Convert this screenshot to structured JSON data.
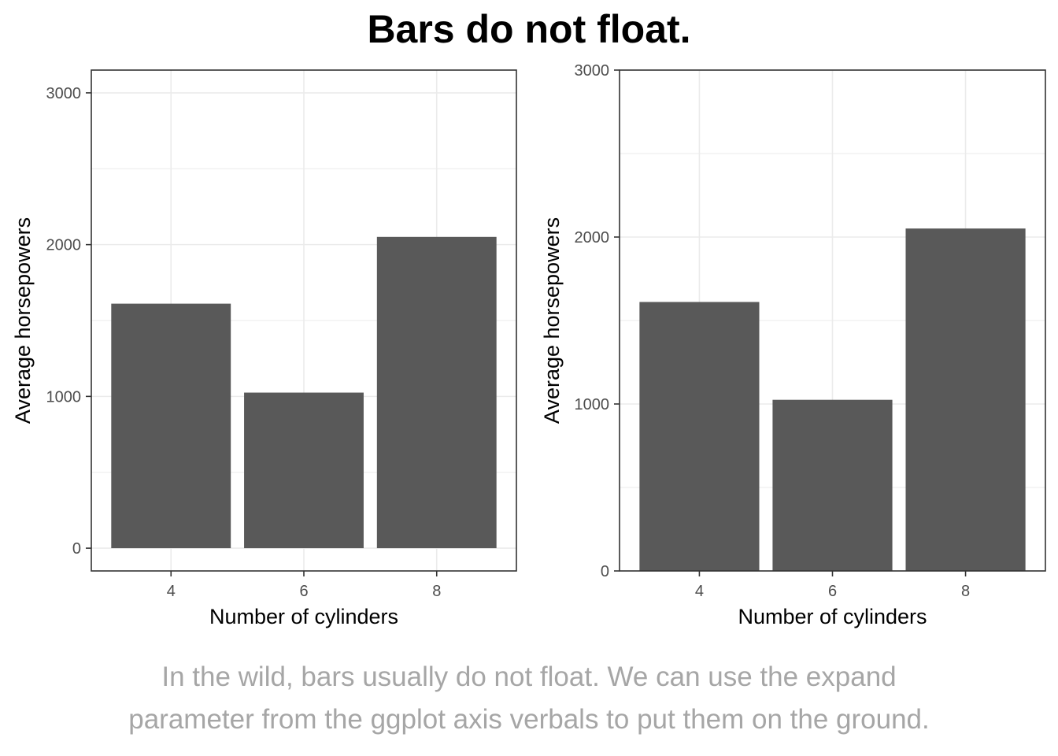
{
  "title": "Bars do not float.",
  "caption": [
    "In the wild, bars usually do not float. We can use the expand",
    "parameter from the ggplot axis verbals to put them on the ground."
  ],
  "colors": {
    "bar": "#595959",
    "grid": "#ebebeb",
    "panel_border": "#333333",
    "caption": "#a6a6a6",
    "tick_text": "#4d4d4d"
  },
  "chart_data": [
    {
      "type": "bar",
      "categories": [
        "4",
        "6",
        "8"
      ],
      "values": [
        1611,
        1025,
        2051
      ],
      "xlabel": "Number of cylinders",
      "ylabel": "Average horsepowers",
      "yticks": [
        0,
        1000,
        2000,
        3000
      ],
      "ylim": [
        -150,
        3150
      ],
      "grid": true,
      "expand": "default"
    },
    {
      "type": "bar",
      "categories": [
        "4",
        "6",
        "8"
      ],
      "values": [
        1611,
        1025,
        2051
      ],
      "xlabel": "Number of cylinders",
      "ylabel": "Average horsepowers",
      "yticks": [
        0,
        1000,
        2000,
        3000
      ],
      "ylim": [
        0,
        3000
      ],
      "grid": true,
      "expand": "none"
    }
  ]
}
